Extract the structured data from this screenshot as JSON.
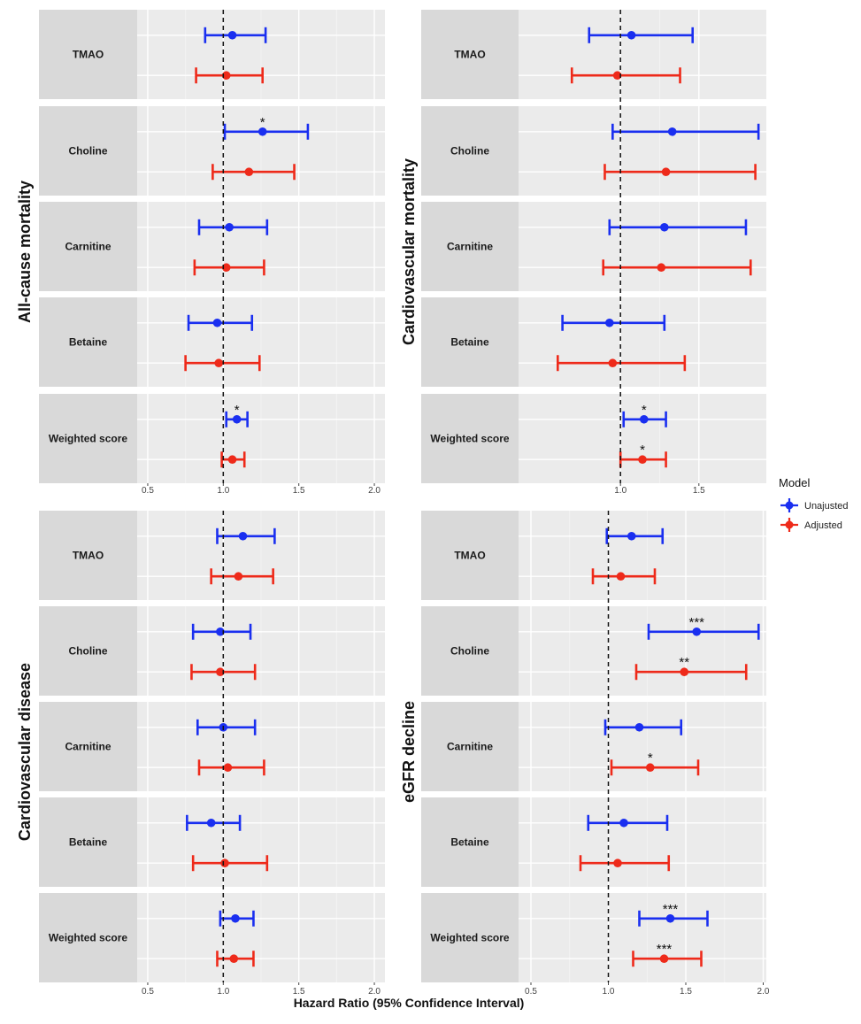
{
  "chart_data": {
    "type": "forest",
    "xlabel": "Hazard Ratio (95% Confidence Interval)",
    "reference_line": 1.0,
    "legend": {
      "title": "Model",
      "placement": "right",
      "entries": [
        {
          "name": "Unajusted",
          "color": "#1a2ff0"
        },
        {
          "name": "Adjusted",
          "color": "#ee2a1a"
        }
      ]
    },
    "facets": [
      {
        "title": "All-cause mortality",
        "xlim": [
          0.43,
          2.07
        ],
        "xticks": [
          0.5,
          1.0,
          1.5,
          2.0
        ],
        "tick_labels": [
          "0.5",
          "1.0",
          "1.5",
          "2.0"
        ],
        "rows": [
          {
            "label": "TMAO",
            "unadjusted": {
              "hr": 1.06,
              "lo": 0.88,
              "hi": 1.28,
              "sig": ""
            },
            "adjusted": {
              "hr": 1.02,
              "lo": 0.82,
              "hi": 1.26,
              "sig": ""
            }
          },
          {
            "label": "Choline",
            "unadjusted": {
              "hr": 1.26,
              "lo": 1.01,
              "hi": 1.56,
              "sig": "*"
            },
            "adjusted": {
              "hr": 1.17,
              "lo": 0.93,
              "hi": 1.47,
              "sig": ""
            }
          },
          {
            "label": "Carnitine",
            "unadjusted": {
              "hr": 1.04,
              "lo": 0.84,
              "hi": 1.29,
              "sig": ""
            },
            "adjusted": {
              "hr": 1.02,
              "lo": 0.81,
              "hi": 1.27,
              "sig": ""
            }
          },
          {
            "label": "Betaine",
            "unadjusted": {
              "hr": 0.96,
              "lo": 0.77,
              "hi": 1.19,
              "sig": ""
            },
            "adjusted": {
              "hr": 0.97,
              "lo": 0.75,
              "hi": 1.24,
              "sig": ""
            }
          },
          {
            "label": "Weighted score",
            "unadjusted": {
              "hr": 1.09,
              "lo": 1.02,
              "hi": 1.16,
              "sig": "*"
            },
            "adjusted": {
              "hr": 1.06,
              "lo": 0.99,
              "hi": 1.14,
              "sig": ""
            }
          }
        ]
      },
      {
        "title": "Cardiovascular mortality",
        "xlim": [
          0.35,
          1.93
        ],
        "xticks": [
          1.0,
          1.5
        ],
        "tick_labels": [
          "1.0",
          "1.5"
        ],
        "rows": [
          {
            "label": "TMAO",
            "unadjusted": {
              "hr": 1.07,
              "lo": 0.8,
              "hi": 1.46,
              "sig": ""
            },
            "adjusted": {
              "hr": 0.98,
              "lo": 0.69,
              "hi": 1.38,
              "sig": ""
            }
          },
          {
            "label": "Choline",
            "unadjusted": {
              "hr": 1.33,
              "lo": 0.95,
              "hi": 1.88,
              "sig": ""
            },
            "adjusted": {
              "hr": 1.29,
              "lo": 0.9,
              "hi": 1.86,
              "sig": ""
            }
          },
          {
            "label": "Carnitine",
            "unadjusted": {
              "hr": 1.28,
              "lo": 0.93,
              "hi": 1.8,
              "sig": ""
            },
            "adjusted": {
              "hr": 1.26,
              "lo": 0.89,
              "hi": 1.83,
              "sig": ""
            }
          },
          {
            "label": "Betaine",
            "unadjusted": {
              "hr": 0.93,
              "lo": 0.63,
              "hi": 1.28,
              "sig": ""
            },
            "adjusted": {
              "hr": 0.95,
              "lo": 0.6,
              "hi": 1.41,
              "sig": ""
            }
          },
          {
            "label": "Weighted score",
            "unadjusted": {
              "hr": 1.15,
              "lo": 1.02,
              "hi": 1.29,
              "sig": "*"
            },
            "adjusted": {
              "hr": 1.14,
              "lo": 1.0,
              "hi": 1.29,
              "sig": "*"
            }
          }
        ]
      },
      {
        "title": "Cardiovascular disease",
        "xlim": [
          0.43,
          2.07
        ],
        "xticks": [
          0.5,
          1.0,
          1.5,
          2.0
        ],
        "tick_labels": [
          "0.5",
          "1.0",
          "1.5",
          "2.0"
        ],
        "rows": [
          {
            "label": "TMAO",
            "unadjusted": {
              "hr": 1.13,
              "lo": 0.96,
              "hi": 1.34,
              "sig": ""
            },
            "adjusted": {
              "hr": 1.1,
              "lo": 0.92,
              "hi": 1.33,
              "sig": ""
            }
          },
          {
            "label": "Choline",
            "unadjusted": {
              "hr": 0.98,
              "lo": 0.8,
              "hi": 1.18,
              "sig": ""
            },
            "adjusted": {
              "hr": 0.98,
              "lo": 0.79,
              "hi": 1.21,
              "sig": ""
            }
          },
          {
            "label": "Carnitine",
            "unadjusted": {
              "hr": 1.0,
              "lo": 0.83,
              "hi": 1.21,
              "sig": ""
            },
            "adjusted": {
              "hr": 1.03,
              "lo": 0.84,
              "hi": 1.27,
              "sig": ""
            }
          },
          {
            "label": "Betaine",
            "unadjusted": {
              "hr": 0.92,
              "lo": 0.76,
              "hi": 1.11,
              "sig": ""
            },
            "adjusted": {
              "hr": 1.01,
              "lo": 0.8,
              "hi": 1.29,
              "sig": ""
            }
          },
          {
            "label": "Weighted score",
            "unadjusted": {
              "hr": 1.08,
              "lo": 0.98,
              "hi": 1.2,
              "sig": ""
            },
            "adjusted": {
              "hr": 1.07,
              "lo": 0.96,
              "hi": 1.2,
              "sig": ""
            }
          }
        ]
      },
      {
        "title": "eGFR decline",
        "xlim": [
          0.42,
          2.02
        ],
        "xticks": [
          0.5,
          1.0,
          1.5,
          2.0
        ],
        "tick_labels": [
          "0.5",
          "1.0",
          "1.5",
          "2.0"
        ],
        "rows": [
          {
            "label": "TMAO",
            "unadjusted": {
              "hr": 1.15,
              "lo": 0.99,
              "hi": 1.35,
              "sig": ""
            },
            "adjusted": {
              "hr": 1.08,
              "lo": 0.9,
              "hi": 1.3,
              "sig": ""
            }
          },
          {
            "label": "Choline",
            "unadjusted": {
              "hr": 1.57,
              "lo": 1.26,
              "hi": 1.97,
              "sig": "***"
            },
            "adjusted": {
              "hr": 1.49,
              "lo": 1.18,
              "hi": 1.89,
              "sig": "**"
            }
          },
          {
            "label": "Carnitine",
            "unadjusted": {
              "hr": 1.2,
              "lo": 0.98,
              "hi": 1.47,
              "sig": ""
            },
            "adjusted": {
              "hr": 1.27,
              "lo": 1.02,
              "hi": 1.58,
              "sig": "*"
            }
          },
          {
            "label": "Betaine",
            "unadjusted": {
              "hr": 1.1,
              "lo": 0.87,
              "hi": 1.38,
              "sig": ""
            },
            "adjusted": {
              "hr": 1.06,
              "lo": 0.82,
              "hi": 1.39,
              "sig": ""
            }
          },
          {
            "label": "Weighted score",
            "unadjusted": {
              "hr": 1.4,
              "lo": 1.2,
              "hi": 1.64,
              "sig": "***"
            },
            "adjusted": {
              "hr": 1.36,
              "lo": 1.16,
              "hi": 1.6,
              "sig": "***"
            }
          }
        ]
      }
    ]
  }
}
